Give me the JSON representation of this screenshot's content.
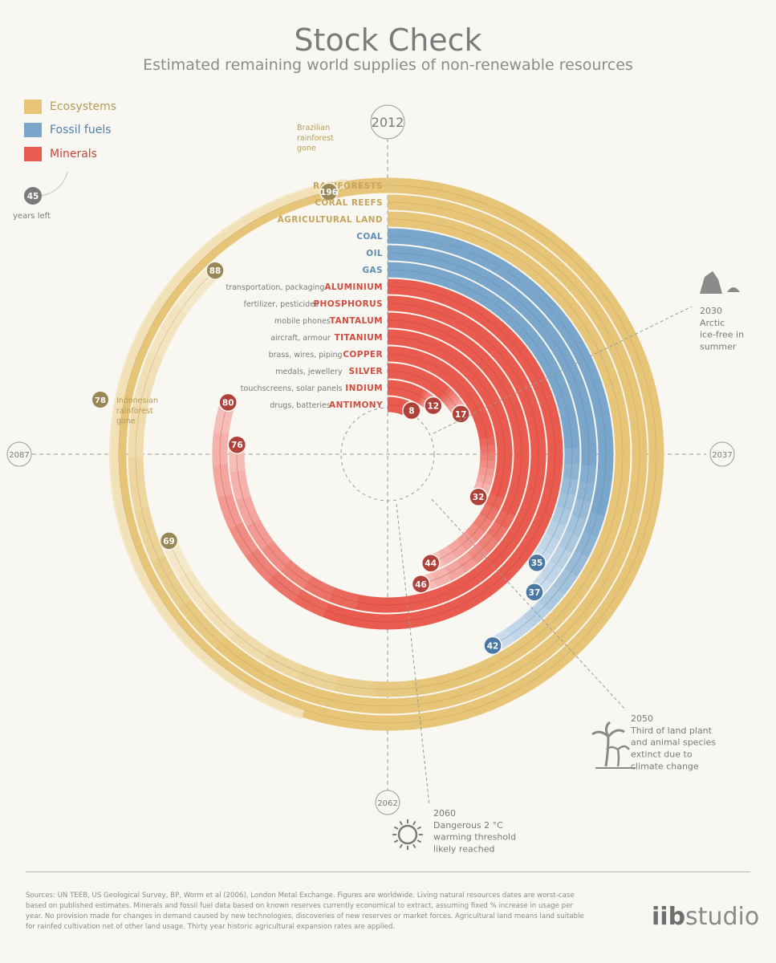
{
  "title": "Stock Check",
  "subtitle": "Estimated remaining world supplies of non-renewable resources",
  "legend": [
    {
      "label": "Ecosystems",
      "color": "#e6c578"
    },
    {
      "label": "Fossil fuels",
      "color": "#7aa6cc"
    },
    {
      "label": "Minerals",
      "color": "#e95b4f"
    }
  ],
  "years_left_example": {
    "value": "45",
    "label": "years left"
  },
  "chart_data": {
    "type": "radial bar",
    "start_year": 2012,
    "axis_years": [
      "2012",
      "2037",
      "2062",
      "2087"
    ],
    "full_circle_years": 100,
    "categories": [
      {
        "name": "RAINFORESTS",
        "use": "",
        "group": "Ecosystems",
        "years": 196
      },
      {
        "name": "CORAL REEFS",
        "use": "",
        "group": "Ecosystems",
        "years": 88
      },
      {
        "name": "AGRICULTURAL LAND",
        "use": "",
        "group": "Ecosystems",
        "years": 69
      },
      {
        "name": "COAL",
        "use": "",
        "group": "Fossil fuels",
        "years": 42
      },
      {
        "name": "OIL",
        "use": "",
        "group": "Fossil fuels",
        "years": 37
      },
      {
        "name": "GAS",
        "use": "",
        "group": "Fossil fuels",
        "years": 35
      },
      {
        "name": "ALUMINIUM",
        "use": "transportation, packaging",
        "group": "Minerals",
        "years": 80
      },
      {
        "name": "PHOSPHORUS",
        "use": "fertilizer, pesticides",
        "group": "Minerals",
        "years": 76
      },
      {
        "name": "TANTALUM",
        "use": "mobile phones",
        "group": "Minerals",
        "years": 46
      },
      {
        "name": "TITANIUM",
        "use": "aircraft, armour",
        "group": "Minerals",
        "years": 44
      },
      {
        "name": "COPPER",
        "use": "brass, wires, piping",
        "group": "Minerals",
        "years": 32
      },
      {
        "name": "SILVER",
        "use": "medals, jewellery",
        "group": "Minerals",
        "years": 17
      },
      {
        "name": "INDIUM",
        "use": "touchscreens, solar panels",
        "group": "Minerals",
        "years": 12
      },
      {
        "name": "ANTIMONY",
        "use": "drugs, batteries",
        "group": "Minerals",
        "years": 8
      }
    ],
    "annotations": [
      {
        "year_marker": "78",
        "text": "Indonesian rainforest gone"
      },
      {
        "year_marker": "196",
        "text": "Brazilian rainforest gone"
      },
      {
        "year": "2030",
        "text": "Arctic ice-free in summer"
      },
      {
        "year": "2050",
        "text": "Third of land plant and animal species extinct due to climate change"
      },
      {
        "year": "2060",
        "text": "Dangerous 2 °C warming threshold likely reached"
      }
    ]
  },
  "sources": "Sources: UN TEEB, US Geological Survey, BP, Worm et al (2006), London Metal Exchange. Figures are worldwide. Living natural resources dates are worst-case based on published estimates. Minerals and fossil fuel data based on known reserves currently economical to extract, assuming fixed % increase in usage per year. No provision made for changes in demand caused by new technologies, discoveries of new reserves or market forces. Agricultural land means land suitable for rainfed cultivation net of other land usage. Thirty year historic agricultural expansion rates are applied.",
  "logo": {
    "bold": "iib",
    "rest": "studio"
  }
}
